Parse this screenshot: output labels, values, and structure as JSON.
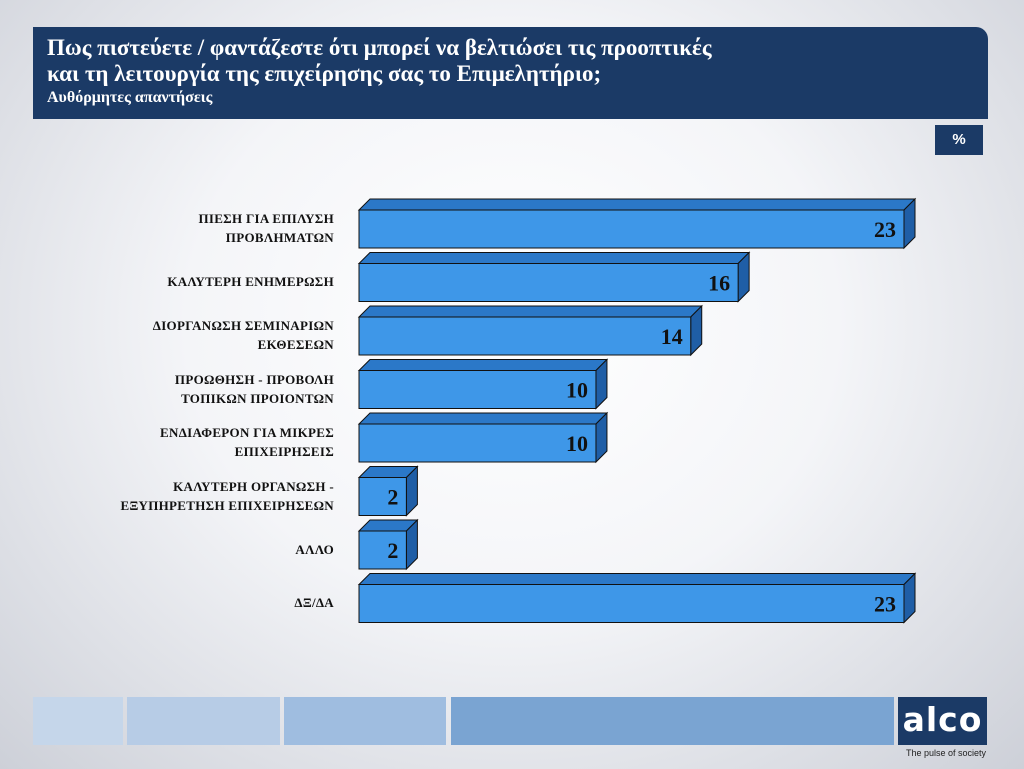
{
  "header": {
    "title": "Πως πιστεύετε / φαντάζεστε  ότι μπορεί να βελτιώσει τις προοπτικές\nκαι τη λειτουργία της επιχείρησης σας το Επιμελητήριο;",
    "subtitle": "Αυθόρμητες απαντήσεις"
  },
  "badge": "%",
  "chart_data": {
    "type": "bar",
    "orientation": "horizontal",
    "categories": [
      "ΠΙΕΣΗ ΓΙΑ ΕΠΙΛΥΣΗ\nΠΡΟΒΛΗΜΑΤΩΝ",
      "ΚΑΛΥΤΕΡΗ ΕΝΗΜΕΡΩΣΗ",
      "ΔΙΟΡΓΑΝΩΣΗ ΣΕΜΙΝΑΡΙΩΝ\nΕΚΘΕΣΕΩΝ",
      "ΠΡΟΩΘΗΣΗ  - ΠΡΟΒΟΛΗ\nΤΟΠΙΚΩΝ ΠΡΟΙΟΝΤΩΝ",
      "ΕΝΔΙΑΦΕΡΟΝ ΓΙΑ ΜΙΚΡΕΣ\nΕΠΙΧΕΙΡΗΣΕΙΣ",
      "ΚΑΛΥΤΕΡΗ ΟΡΓΑΝΩΣΗ -\nΕΞΥΠΗΡΕΤΗΣΗ  ΕΠΙΧΕΙΡΗΣΕΩΝ",
      "ΑΛΛΟ",
      "ΔΞ/ΔΑ"
    ],
    "values": [
      23,
      16,
      14,
      10,
      10,
      2,
      2,
      23
    ],
    "data_labels": [
      "23",
      "16",
      "14",
      "10",
      "10",
      "2",
      "2",
      "23"
    ],
    "xlim": [
      0,
      23
    ],
    "bar_color": "#3e97e8",
    "bar_top_color": "#2b78c8",
    "bar_side_color": "#1f5ea6",
    "grid": false,
    "legend": "none"
  },
  "footer": {
    "logo": "alco",
    "tagline": "The pulse of society",
    "bar_colors": [
      "#c5d6ea",
      "#b7cce6",
      "#9fbde0",
      "#7aa4d2"
    ]
  }
}
